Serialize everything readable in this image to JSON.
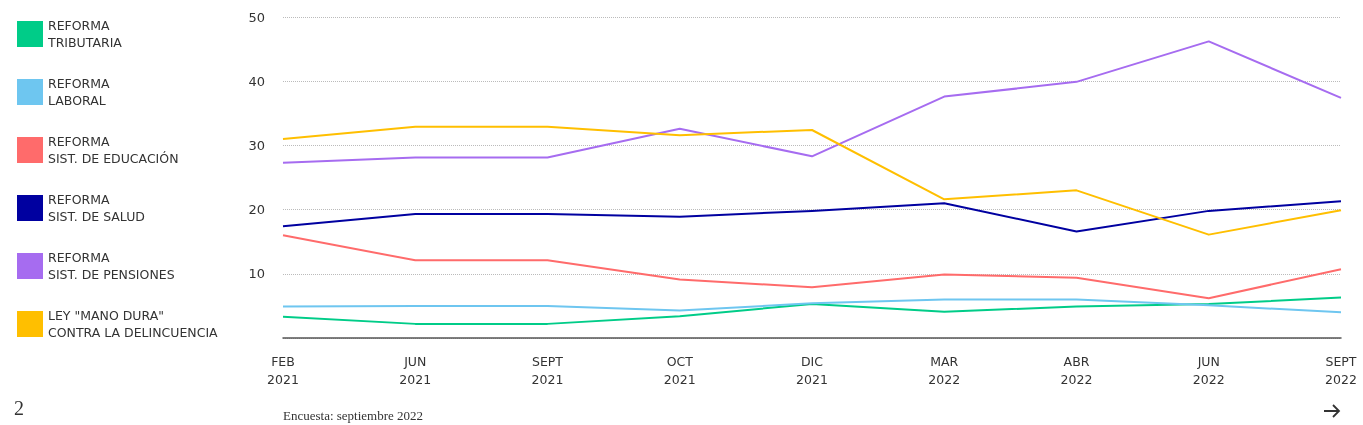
{
  "chart_data": {
    "type": "line",
    "categories": [
      "FEB\n2021",
      "JUN\n2021",
      "SEPT\n2021",
      "OCT\n2021",
      "DIC\n2021",
      "MAR\n2022",
      "ABR\n2022",
      "JUN\n2022",
      "SEPT\n2022"
    ],
    "series": [
      {
        "name": "REFORMA\nTRIBUTARIA",
        "color": "#00cc88",
        "values": [
          3.3,
          2.2,
          2.2,
          3.4,
          5.3,
          4.1,
          4.9,
          5.3,
          6.3
        ]
      },
      {
        "name": "REFORMA\nLABORAL",
        "color": "#6ec6f0",
        "values": [
          4.9,
          5.0,
          5.0,
          4.3,
          5.4,
          6.0,
          6.0,
          5.1,
          4.0
        ]
      },
      {
        "name": "REFORMA\nSIST. DE EDUCACIÓN",
        "color": "#ff6b6b",
        "values": [
          16.0,
          12.1,
          12.1,
          9.1,
          7.9,
          9.9,
          9.4,
          6.2,
          10.7
        ]
      },
      {
        "name": "REFORMA\nSIST. DE SALUD",
        "color": "#0000a0",
        "values": [
          17.4,
          19.3,
          19.3,
          18.9,
          19.8,
          21.0,
          16.6,
          19.8,
          21.3
        ]
      },
      {
        "name": "REFORMA\nSIST. DE PENSIONES",
        "color": "#a66cf0",
        "values": [
          27.3,
          28.1,
          28.1,
          32.6,
          28.3,
          37.6,
          39.9,
          46.2,
          37.4
        ]
      },
      {
        "name": "LEY \"MANO DURA\"\nCONTRA LA DELINCUENCIA",
        "color": "#ffbf00",
        "values": [
          31.0,
          32.9,
          32.9,
          31.6,
          32.4,
          21.6,
          23.0,
          16.1,
          19.9
        ]
      }
    ],
    "ylim": [
      0,
      50
    ],
    "yticks": [
      {
        "value": 0,
        "label": null
      },
      10,
      20,
      30,
      40,
      50
    ],
    "grid": "y",
    "legend": "left",
    "marker": "none",
    "line_style": "solid",
    "annotations": [
      "Encuesta: septiembre 2022",
      "2"
    ]
  }
}
